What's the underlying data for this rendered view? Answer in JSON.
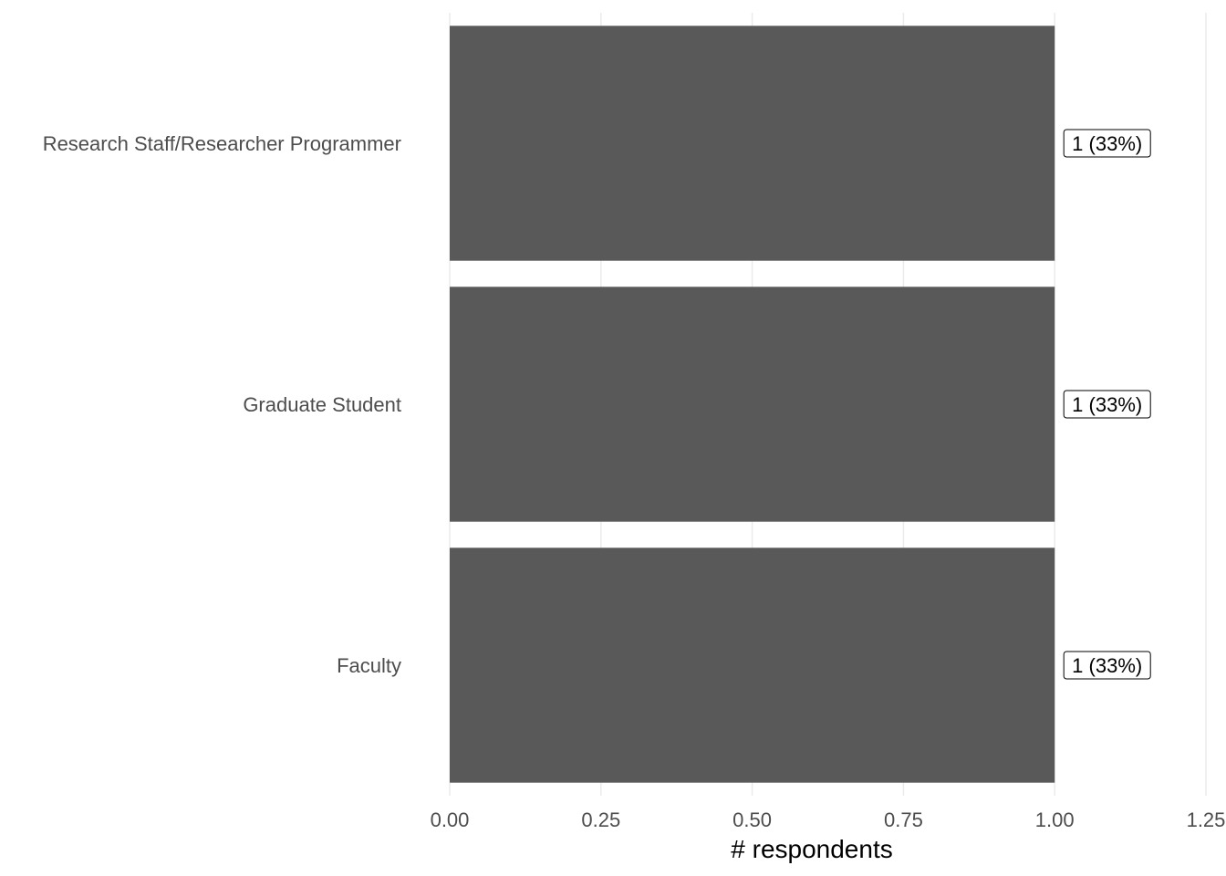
{
  "chart_data": {
    "type": "bar",
    "orientation": "horizontal",
    "categories": [
      "Research Staff/Researcher Programmer",
      "Graduate Student",
      "Faculty"
    ],
    "values": [
      1,
      1,
      1
    ],
    "data_labels": [
      "1 (33%)",
      "1 (33%)",
      "1 (33%)"
    ],
    "xlabel": "# respondents",
    "ylabel": "",
    "xlim": [
      0,
      1.25
    ],
    "x_ticks": [
      "0.00",
      "0.25",
      "0.50",
      "0.75",
      "1.00",
      "1.25"
    ],
    "grid": true,
    "bar_color": "#595959",
    "grid_color": "#ebebeb"
  }
}
